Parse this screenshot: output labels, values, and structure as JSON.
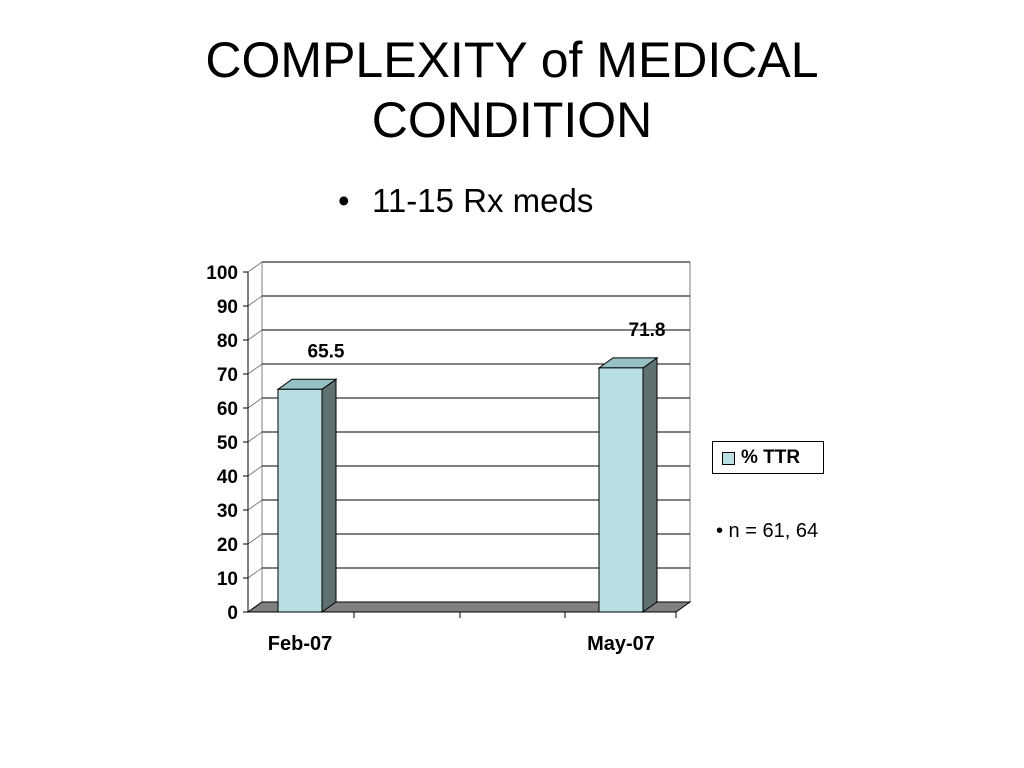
{
  "slide": {
    "title_lines": [
      "COMPLEXITY of  MEDICAL",
      "CONDITION"
    ],
    "subtitle_bullet": "•",
    "subtitle": "11-15 Rx meds",
    "note": "• n = 61, 64"
  },
  "chart_data": {
    "type": "bar",
    "categories": [
      "Feb-07",
      "May-07"
    ],
    "series": [
      {
        "name": "% TTR",
        "values": [
          65.5,
          71.8
        ]
      }
    ],
    "data_labels": [
      "65.5",
      "71.8"
    ],
    "ylim": [
      0,
      100
    ],
    "yticks": [
      0,
      10,
      20,
      30,
      40,
      50,
      60,
      70,
      80,
      90,
      100
    ],
    "grid": true,
    "legend_position": "right",
    "colors": {
      "bar_front": "#b9dfe3",
      "bar_side": "#5f7070",
      "bar_top": "#95c0c4",
      "floor": "#808080"
    }
  }
}
